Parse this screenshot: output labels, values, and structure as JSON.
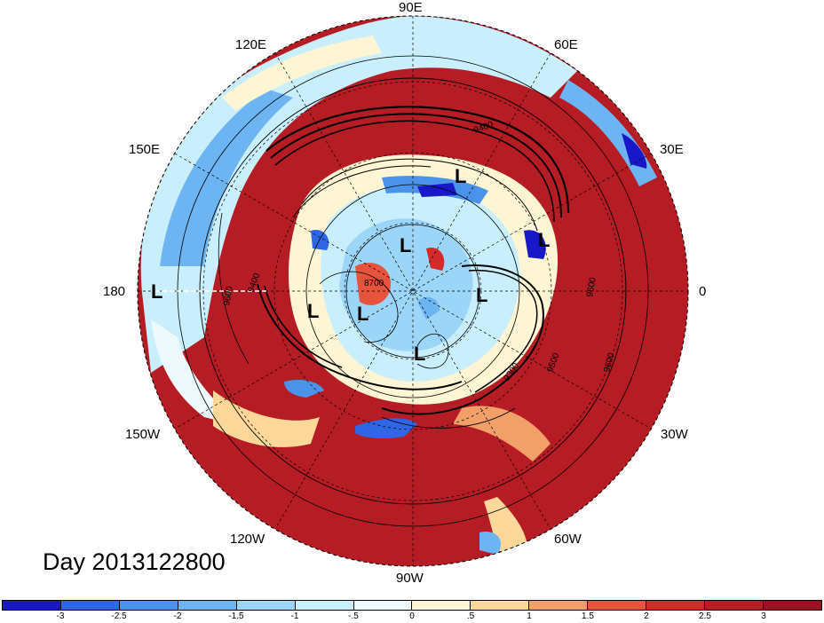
{
  "map": {
    "projection": "north-polar-stereographic",
    "longitude_labels": {
      "lon_90E": "90E",
      "lon_120E": "120E",
      "lon_60E": "60E",
      "lon_150E": "150E",
      "lon_30E": "30E",
      "lon_180": "180",
      "lon_0": "0",
      "lon_150W": "150W",
      "lon_30W": "30W",
      "lon_120W": "120W",
      "lon_60W": "60W",
      "lon_90W": "90W"
    },
    "contour_labels": [
      "8700",
      "9300",
      "9400",
      "9400",
      "9500",
      "9600",
      "9600",
      "9600"
    ],
    "low_marker": "L",
    "low_count": 9,
    "title": "Day 2013122800"
  },
  "colorbar": {
    "tick_labels": [
      "-3",
      "-2.5",
      "-2",
      "-1.5",
      "-1",
      "-.5",
      "0",
      ".5",
      "1",
      "1.5",
      "2",
      "2.5",
      "3"
    ],
    "colors": [
      "#1818c8",
      "#2f66e6",
      "#4b92ea",
      "#6cb4f2",
      "#9bd6f8",
      "#c9eefc",
      "#eef9fb",
      "#fdf5d4",
      "#fbd79a",
      "#f2a06a",
      "#e8533d",
      "#d42a2a",
      "#b51c24",
      "#9a1221"
    ]
  }
}
